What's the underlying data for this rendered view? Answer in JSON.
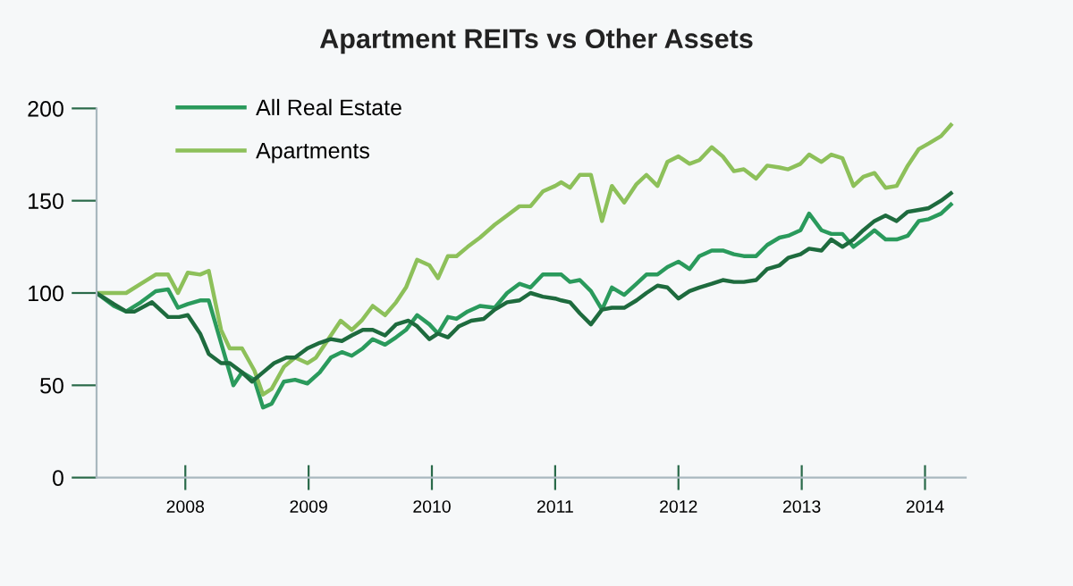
{
  "chart_data": {
    "type": "line",
    "title": "Apartment REITs vs Other Assets",
    "xlim": [
      2007.28,
      2014.33
    ],
    "xticks": [
      2008,
      2009,
      2010,
      2011,
      2012,
      2013,
      2014
    ],
    "ylim": [
      0,
      200
    ],
    "yticks": [
      0,
      50,
      100,
      150,
      200
    ],
    "grid": false,
    "legend": "top left",
    "marker": "none",
    "line_style": "solid",
    "series": [
      {
        "name": "All Real Estate",
        "color": "#2a9a5c",
        "x": [
          2007.28,
          2007.42,
          2007.52,
          2007.64,
          2007.76,
          2007.86,
          2007.94,
          2008.02,
          2008.12,
          2008.19,
          2008.39,
          2008.46,
          2008.56,
          2008.63,
          2008.7,
          2008.8,
          2008.89,
          2008.99,
          2009.09,
          2009.18,
          2009.27,
          2009.35,
          2009.44,
          2009.52,
          2009.62,
          2009.71,
          2009.79,
          2009.88,
          2009.98,
          2010.05,
          2010.13,
          2010.2,
          2010.29,
          2010.39,
          2010.51,
          2010.61,
          2010.71,
          2010.8,
          2010.9,
          2011.0,
          2011.05,
          2011.12,
          2011.2,
          2011.29,
          2011.38,
          2011.46,
          2011.56,
          2011.66,
          2011.74,
          2011.83,
          2011.91,
          2012.0,
          2012.09,
          2012.17,
          2012.27,
          2012.36,
          2012.45,
          2012.53,
          2012.63,
          2012.72,
          2012.82,
          2012.89,
          2012.99,
          2013.06,
          2013.16,
          2013.24,
          2013.33,
          2013.42,
          2013.5,
          2013.59,
          2013.68,
          2013.77,
          2013.86,
          2013.95,
          2014.03,
          2014.13,
          2014.21
        ],
        "values": [
          100,
          93,
          90,
          95,
          101,
          102,
          92,
          94,
          96,
          96,
          50,
          57,
          53,
          38,
          40,
          52,
          53,
          51,
          57,
          65,
          68,
          66,
          70,
          75,
          72,
          76,
          80,
          88,
          83,
          78,
          87,
          86,
          90,
          93,
          92,
          100,
          105,
          103,
          110,
          110,
          110,
          106,
          107,
          101,
          91,
          103,
          99,
          105,
          110,
          110,
          114,
          117,
          113,
          120,
          123,
          123,
          121,
          120,
          120,
          126,
          130,
          131,
          134,
          143,
          134,
          132,
          132,
          125,
          129,
          134,
          129,
          129,
          131,
          139,
          140,
          143,
          148
        ]
      },
      {
        "name": "Apartments",
        "color": "#8dc05a",
        "x": [
          2007.28,
          2007.52,
          2007.64,
          2007.76,
          2007.86,
          2007.94,
          2008.02,
          2008.12,
          2008.19,
          2008.29,
          2008.36,
          2008.46,
          2008.56,
          2008.63,
          2008.7,
          2008.8,
          2008.89,
          2008.99,
          2009.06,
          2009.16,
          2009.26,
          2009.35,
          2009.43,
          2009.52,
          2009.62,
          2009.71,
          2009.79,
          2009.88,
          2009.98,
          2010.05,
          2010.13,
          2010.2,
          2010.29,
          2010.39,
          2010.51,
          2010.61,
          2010.71,
          2010.8,
          2010.9,
          2011.0,
          2011.05,
          2011.12,
          2011.2,
          2011.29,
          2011.38,
          2011.46,
          2011.56,
          2011.66,
          2011.74,
          2011.83,
          2011.91,
          2012.0,
          2012.09,
          2012.17,
          2012.27,
          2012.36,
          2012.45,
          2012.53,
          2012.63,
          2012.72,
          2012.82,
          2012.89,
          2012.99,
          2013.06,
          2013.16,
          2013.24,
          2013.33,
          2013.42,
          2013.5,
          2013.59,
          2013.68,
          2013.77,
          2013.86,
          2013.95,
          2014.03,
          2014.13,
          2014.21
        ],
        "values": [
          100,
          100,
          105,
          110,
          110,
          100,
          111,
          110,
          112,
          80,
          70,
          70,
          58,
          45,
          48,
          60,
          65,
          62,
          65,
          75,
          85,
          80,
          85,
          93,
          88,
          95,
          103,
          118,
          115,
          108,
          120,
          120,
          125,
          130,
          137,
          142,
          147,
          147,
          155,
          158,
          160,
          157,
          164,
          164,
          139,
          158,
          149,
          159,
          164,
          158,
          171,
          174,
          170,
          172,
          179,
          174,
          166,
          167,
          162,
          169,
          168,
          167,
          170,
          175,
          171,
          175,
          173,
          158,
          163,
          165,
          157,
          158,
          169,
          178,
          181,
          185,
          191
        ]
      },
      {
        "color": "#1e6b3e",
        "x": [
          2007.28,
          2007.42,
          2007.52,
          2007.59,
          2007.73,
          2007.86,
          2007.95,
          2008.02,
          2008.12,
          2008.19,
          2008.29,
          2008.36,
          2008.46,
          2008.54,
          2008.63,
          2008.72,
          2008.82,
          2008.89,
          2008.99,
          2009.09,
          2009.18,
          2009.27,
          2009.35,
          2009.44,
          2009.52,
          2009.62,
          2009.71,
          2009.81,
          2009.88,
          2009.98,
          2010.05,
          2010.13,
          2010.22,
          2010.32,
          2010.42,
          2010.51,
          2010.61,
          2010.71,
          2010.8,
          2010.9,
          2011.0,
          2011.05,
          2011.12,
          2011.2,
          2011.29,
          2011.38,
          2011.46,
          2011.56,
          2011.66,
          2011.74,
          2011.83,
          2011.91,
          2012.0,
          2012.09,
          2012.17,
          2012.27,
          2012.36,
          2012.45,
          2012.53,
          2012.63,
          2012.72,
          2012.82,
          2012.89,
          2012.99,
          2013.06,
          2013.16,
          2013.24,
          2013.33,
          2013.42,
          2013.5,
          2013.59,
          2013.68,
          2013.77,
          2013.86,
          2013.95,
          2014.03,
          2014.13,
          2014.21
        ],
        "values": [
          100,
          94,
          90,
          90,
          95,
          87,
          87,
          88,
          78,
          67,
          62,
          62,
          57,
          52,
          57,
          62,
          65,
          65,
          70,
          73,
          75,
          74,
          77,
          80,
          80,
          77,
          83,
          85,
          82,
          75,
          78,
          76,
          82,
          85,
          86,
          91,
          95,
          96,
          100,
          98,
          97,
          96,
          95,
          89,
          83,
          91,
          92,
          92,
          96,
          100,
          104,
          103,
          97,
          101,
          103,
          105,
          107,
          106,
          106,
          107,
          113,
          115,
          119,
          121,
          124,
          123,
          129,
          125,
          129,
          134,
          139,
          142,
          139,
          144,
          145,
          146,
          150,
          154
        ]
      }
    ]
  }
}
